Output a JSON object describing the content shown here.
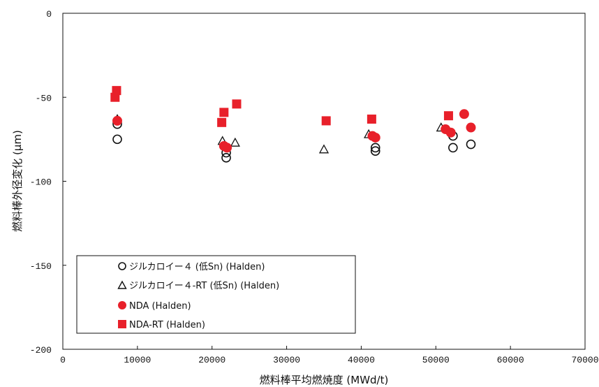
{
  "colors": {
    "red": "#e8202a",
    "black": "#111111"
  },
  "chart_data": {
    "type": "scatter",
    "xlabel": "燃料棒平均燃焼度 (MWd/t)",
    "ylabel": "燃料棒外径変化 (μm)",
    "xlim": [
      0,
      70000
    ],
    "ylim": [
      -200,
      0
    ],
    "x_ticks": [
      "0",
      "10000",
      "20000",
      "30000",
      "40000",
      "50000",
      "60000",
      "70000"
    ],
    "y_ticks": [
      "0",
      "-50",
      "-100",
      "-150",
      "-200"
    ],
    "grid": false,
    "legend_position": "bottom-left",
    "series": [
      {
        "name": "ジルカロイー４ (低Sn) (Halden)",
        "marker": "open-circle",
        "points": [
          {
            "x": 7300,
            "y": -66
          },
          {
            "x": 7300,
            "y": -75
          },
          {
            "x": 21900,
            "y": -83
          },
          {
            "x": 21900,
            "y": -86
          },
          {
            "x": 41900,
            "y": -80
          },
          {
            "x": 41900,
            "y": -82
          },
          {
            "x": 52300,
            "y": -73
          },
          {
            "x": 52300,
            "y": -80
          },
          {
            "x": 54700,
            "y": -78
          }
        ]
      },
      {
        "name": "ジルカロイー４-RT (低Sn) (Halden)",
        "marker": "open-triangle",
        "points": [
          {
            "x": 7300,
            "y": -63
          },
          {
            "x": 21400,
            "y": -76
          },
          {
            "x": 23100,
            "y": -77
          },
          {
            "x": 35000,
            "y": -81
          },
          {
            "x": 41000,
            "y": -72
          },
          {
            "x": 50700,
            "y": -68
          }
        ]
      },
      {
        "name": "NDA (Halden)",
        "marker": "filled-circle",
        "points": [
          {
            "x": 7300,
            "y": -64
          },
          {
            "x": 21600,
            "y": -79
          },
          {
            "x": 22000,
            "y": -80
          },
          {
            "x": 41500,
            "y": -73
          },
          {
            "x": 41900,
            "y": -74
          },
          {
            "x": 51300,
            "y": -69
          },
          {
            "x": 52000,
            "y": -71
          },
          {
            "x": 53800,
            "y": -60
          },
          {
            "x": 54700,
            "y": -68
          }
        ]
      },
      {
        "name": "NDA-RT (Halden)",
        "marker": "filled-square",
        "points": [
          {
            "x": 7200,
            "y": -46
          },
          {
            "x": 7000,
            "y": -50
          },
          {
            "x": 21600,
            "y": -59
          },
          {
            "x": 21300,
            "y": -65
          },
          {
            "x": 23300,
            "y": -54
          },
          {
            "x": 35300,
            "y": -64
          },
          {
            "x": 41400,
            "y": -63
          },
          {
            "x": 51700,
            "y": -61
          }
        ]
      }
    ]
  }
}
